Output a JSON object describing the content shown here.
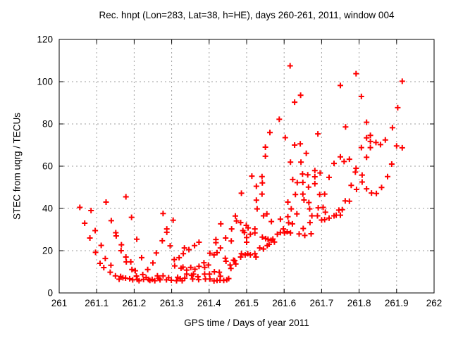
{
  "chart_data": {
    "type": "scatter",
    "title": "Rec. hnpt (Lon=283, Lat=38, h=HE), days 260-261, 2011, window 004",
    "xlabel": "GPS time / Days of year 2011",
    "ylabel": "STEC from uqrg / TECUs",
    "xlim": [
      261,
      262
    ],
    "ylim": [
      0,
      120
    ],
    "grid": true,
    "grid_color": "#9e9e9e",
    "axis_color": "#000000",
    "legend": "none",
    "marker": "plus",
    "marker_color": "#ff0000",
    "xticks": [
      [
        261,
        "261"
      ],
      [
        261.1,
        "261.1"
      ],
      [
        261.2,
        "261.2"
      ],
      [
        261.3,
        "261.3"
      ],
      [
        261.4,
        "261.4"
      ],
      [
        261.5,
        "261.5"
      ],
      [
        261.6,
        "261.6"
      ],
      [
        261.7,
        "261.7"
      ],
      [
        261.8,
        "261.8"
      ],
      [
        261.9,
        "261.9"
      ],
      [
        262,
        "262"
      ]
    ],
    "yticks": [
      [
        0,
        "0"
      ],
      [
        20,
        "20"
      ],
      [
        40,
        "40"
      ],
      [
        60,
        "60"
      ],
      [
        80,
        "80"
      ],
      [
        100,
        "100"
      ],
      [
        120,
        "120"
      ]
    ],
    "series": [
      {
        "name": "STEC from uqrg",
        "points": [
          [
            261.055,
            40.5
          ],
          [
            261.085,
            39
          ],
          [
            261.068,
            33
          ],
          [
            261.082,
            26
          ],
          [
            261.096,
            29.5
          ],
          [
            261.125,
            43
          ],
          [
            261.112,
            22.5
          ],
          [
            261.097,
            19.2
          ],
          [
            261.109,
            14
          ],
          [
            261.123,
            16.3
          ],
          [
            261.119,
            12
          ],
          [
            261.139,
            34.2
          ],
          [
            261.151,
            28.5
          ],
          [
            261.152,
            27
          ],
          [
            261.138,
            13.1
          ],
          [
            261.136,
            9.8
          ],
          [
            261.178,
            45.5
          ],
          [
            261.166,
            22.8
          ],
          [
            261.165,
            20
          ],
          [
            261.178,
            17
          ],
          [
            261.193,
            35.8
          ],
          [
            261.179,
            14.7
          ],
          [
            261.191,
            14.7
          ],
          [
            261.194,
            11.1
          ],
          [
            261.15,
            8.1
          ],
          [
            261.164,
            7.8
          ],
          [
            261.177,
            7
          ],
          [
            261.188,
            6.7
          ],
          [
            261.16,
            6.5
          ],
          [
            261.17,
            7.2
          ],
          [
            261.196,
            6.2
          ],
          [
            261.203,
            10.5
          ],
          [
            261.206,
            8
          ],
          [
            261.208,
            6.4
          ],
          [
            261.207,
            25.4
          ],
          [
            261.22,
            16.7
          ],
          [
            261.223,
            8.7
          ],
          [
            261.225,
            6.4
          ],
          [
            261.236,
            11.1
          ],
          [
            261.238,
            6.4
          ],
          [
            261.25,
            14.2
          ],
          [
            261.248,
            6.4
          ],
          [
            261.259,
            18.9
          ],
          [
            261.269,
            6.2
          ],
          [
            261.277,
            37.6
          ],
          [
            261.275,
            24.7
          ],
          [
            261.262,
            8.1
          ],
          [
            261.277,
            8.1
          ],
          [
            261.286,
            6.2
          ],
          [
            261.287,
            30.3
          ],
          [
            261.287,
            28.7
          ],
          [
            261.296,
            22.3
          ],
          [
            261.304,
            34.4
          ],
          [
            261.307,
            15.8
          ],
          [
            261.308,
            12.8
          ],
          [
            261.32,
            16.7
          ],
          [
            261.323,
            6.7
          ],
          [
            261.325,
            11.7
          ],
          [
            261.328,
            5.8
          ],
          [
            261.33,
            12.2
          ],
          [
            261.331,
            18.6
          ],
          [
            261.213,
            5.8
          ],
          [
            261.232,
            7.3
          ],
          [
            261.242,
            5.9
          ],
          [
            261.255,
            5.8
          ],
          [
            261.266,
            6.9
          ],
          [
            261.292,
            7.2
          ],
          [
            261.299,
            6
          ],
          [
            261.313,
            5.8
          ],
          [
            261.316,
            7.4
          ],
          [
            261.335,
            7
          ],
          [
            261.334,
            21.3
          ],
          [
            261.346,
            20.5
          ],
          [
            261.361,
            22.4
          ],
          [
            261.373,
            24
          ],
          [
            261.351,
            12.1
          ],
          [
            261.362,
            11.2
          ],
          [
            261.373,
            12.6
          ],
          [
            261.386,
            14.3
          ],
          [
            261.388,
            12.1
          ],
          [
            261.398,
            13.2
          ],
          [
            261.34,
            10.8
          ],
          [
            261.34,
            8.9
          ],
          [
            261.353,
            8.3
          ],
          [
            261.358,
            8.9
          ],
          [
            261.356,
            6.6
          ],
          [
            261.37,
            7.7
          ],
          [
            261.372,
            6.3
          ],
          [
            261.388,
            8.9
          ],
          [
            261.39,
            6.6
          ],
          [
            261.401,
            8.9
          ],
          [
            261.402,
            6.6
          ],
          [
            261.413,
            5.7
          ],
          [
            261.421,
            5.9
          ],
          [
            261.429,
            6
          ],
          [
            261.43,
            7.9
          ],
          [
            261.439,
            5.9
          ],
          [
            261.414,
            10
          ],
          [
            261.427,
            9.8
          ],
          [
            261.447,
            6.2
          ],
          [
            261.452,
            6.8
          ],
          [
            261.402,
            18.8
          ],
          [
            261.413,
            18
          ],
          [
            261.421,
            19.1
          ],
          [
            261.418,
            25.3
          ],
          [
            261.418,
            23.8
          ],
          [
            261.43,
            21.3
          ],
          [
            261.431,
            32.7
          ],
          [
            261.444,
            26
          ],
          [
            261.443,
            16.4
          ],
          [
            261.445,
            15
          ],
          [
            261.456,
            13.2
          ],
          [
            261.458,
            11.6
          ],
          [
            261.459,
            24.6
          ],
          [
            261.46,
            30.3
          ],
          [
            261.465,
            15.5
          ],
          [
            261.468,
            15.3
          ],
          [
            261.471,
            13.7
          ],
          [
            261.47,
            36.4
          ],
          [
            261.473,
            34.1
          ],
          [
            261.484,
            33.3
          ],
          [
            261.484,
            17
          ],
          [
            261.486,
            18.6
          ],
          [
            261.486,
            47.2
          ],
          [
            261.494,
            28.6
          ],
          [
            261.49,
            29.5
          ],
          [
            261.496,
            18
          ],
          [
            261.499,
            32
          ],
          [
            261.504,
            30.8
          ],
          [
            261.5,
            26.2
          ],
          [
            261.5,
            24
          ],
          [
            261.503,
            18.6
          ],
          [
            261.51,
            27.8
          ],
          [
            261.51,
            18
          ],
          [
            261.514,
            55.3
          ],
          [
            261.522,
            30.3
          ],
          [
            261.522,
            28.4
          ],
          [
            261.522,
            18.6
          ],
          [
            261.525,
            17
          ],
          [
            261.526,
            50.5
          ],
          [
            261.526,
            43.9
          ],
          [
            261.528,
            39.8
          ],
          [
            261.535,
            21.3
          ],
          [
            261.541,
            55.1
          ],
          [
            261.542,
            52.1
          ],
          [
            261.541,
            46.8
          ],
          [
            261.542,
            26.4
          ],
          [
            261.545,
            20.8
          ],
          [
            261.545,
            36.5
          ],
          [
            261.55,
            69
          ],
          [
            261.55,
            64.7
          ],
          [
            261.554,
            37.4
          ],
          [
            261.551,
            25.7
          ],
          [
            261.557,
            25.4
          ],
          [
            261.555,
            22.4
          ],
          [
            261.562,
            75.9
          ],
          [
            261.56,
            23
          ],
          [
            261.566,
            33.8
          ],
          [
            261.565,
            24.9
          ],
          [
            261.57,
            25.5
          ],
          [
            261.574,
            24.1
          ],
          [
            261.582,
            27.8
          ],
          [
            261.587,
            82.2
          ],
          [
            261.59,
            34.9
          ],
          [
            261.59,
            28.6
          ],
          [
            261.598,
            30.3
          ],
          [
            261.601,
            28.4
          ],
          [
            261.603,
            73.5
          ],
          [
            261.608,
            29
          ],
          [
            261.61,
            43
          ],
          [
            261.61,
            36.1
          ],
          [
            261.612,
            33.2
          ],
          [
            261.616,
            107.5
          ],
          [
            261.617,
            61.9
          ],
          [
            261.617,
            28.4
          ],
          [
            261.619,
            39.8
          ],
          [
            261.622,
            32.7
          ],
          [
            261.623,
            53.7
          ],
          [
            261.628,
            90.3
          ],
          [
            261.628,
            70
          ],
          [
            261.63,
            46.6
          ],
          [
            261.634,
            37.4
          ],
          [
            261.635,
            52.2
          ],
          [
            261.64,
            27.9
          ],
          [
            261.644,
            93.6
          ],
          [
            261.643,
            70.6
          ],
          [
            261.645,
            61.9
          ],
          [
            261.649,
            56.3
          ],
          [
            261.65,
            52.3
          ],
          [
            261.65,
            46.8
          ],
          [
            261.653,
            44
          ],
          [
            261.651,
            30.5
          ],
          [
            261.655,
            27.2
          ],
          [
            261.659,
            66.1
          ],
          [
            261.663,
            55.9
          ],
          [
            261.665,
            50.1
          ],
          [
            261.666,
            42.8
          ],
          [
            261.669,
            33.3
          ],
          [
            261.674,
            36.5
          ],
          [
            261.668,
            39.8
          ],
          [
            261.672,
            28
          ],
          [
            261.69,
            75.3
          ],
          [
            261.682,
            57.9
          ],
          [
            261.682,
            55
          ],
          [
            261.682,
            51.7
          ],
          [
            261.691,
            40.3
          ],
          [
            261.689,
            36.5
          ],
          [
            261.696,
            56.8
          ],
          [
            261.695,
            46.6
          ],
          [
            261.7,
            34.5
          ],
          [
            261.704,
            40.5
          ],
          [
            261.708,
            46.8
          ],
          [
            261.71,
            38.2
          ],
          [
            261.708,
            34.7
          ],
          [
            261.72,
            54.7
          ],
          [
            261.72,
            35.4
          ],
          [
            261.733,
            36.5
          ],
          [
            261.733,
            61.3
          ],
          [
            261.739,
            36.8
          ],
          [
            261.746,
            39.2
          ],
          [
            261.75,
            98.2
          ],
          [
            261.75,
            64.4
          ],
          [
            261.75,
            36.8
          ],
          [
            261.755,
            39.4
          ],
          [
            261.76,
            62.2
          ],
          [
            261.763,
            43.6
          ],
          [
            261.774,
            63.3
          ],
          [
            261.774,
            43.4
          ],
          [
            261.764,
            78.6
          ],
          [
            261.779,
            50.9
          ],
          [
            261.792,
            103.8
          ],
          [
            261.792,
            59
          ],
          [
            261.79,
            57.2
          ],
          [
            261.793,
            49
          ],
          [
            261.806,
            93
          ],
          [
            261.808,
            55.8
          ],
          [
            261.808,
            52.5
          ],
          [
            261.806,
            68.8
          ],
          [
            261.82,
            80.8
          ],
          [
            261.82,
            73.4
          ],
          [
            261.82,
            64.2
          ],
          [
            261.82,
            49.3
          ],
          [
            261.83,
            74.6
          ],
          [
            261.83,
            71.7
          ],
          [
            261.83,
            68.8
          ],
          [
            261.833,
            47.3
          ],
          [
            261.845,
            71.2
          ],
          [
            261.846,
            47.1
          ],
          [
            261.857,
            70.2
          ],
          [
            261.86,
            49.9
          ],
          [
            261.87,
            72.4
          ],
          [
            261.876,
            55.1
          ],
          [
            261.889,
            78.2
          ],
          [
            261.887,
            61
          ],
          [
            261.903,
            87.7
          ],
          [
            261.9,
            69.6
          ],
          [
            261.915,
            100.2
          ],
          [
            261.915,
            68.7
          ]
        ]
      }
    ]
  }
}
